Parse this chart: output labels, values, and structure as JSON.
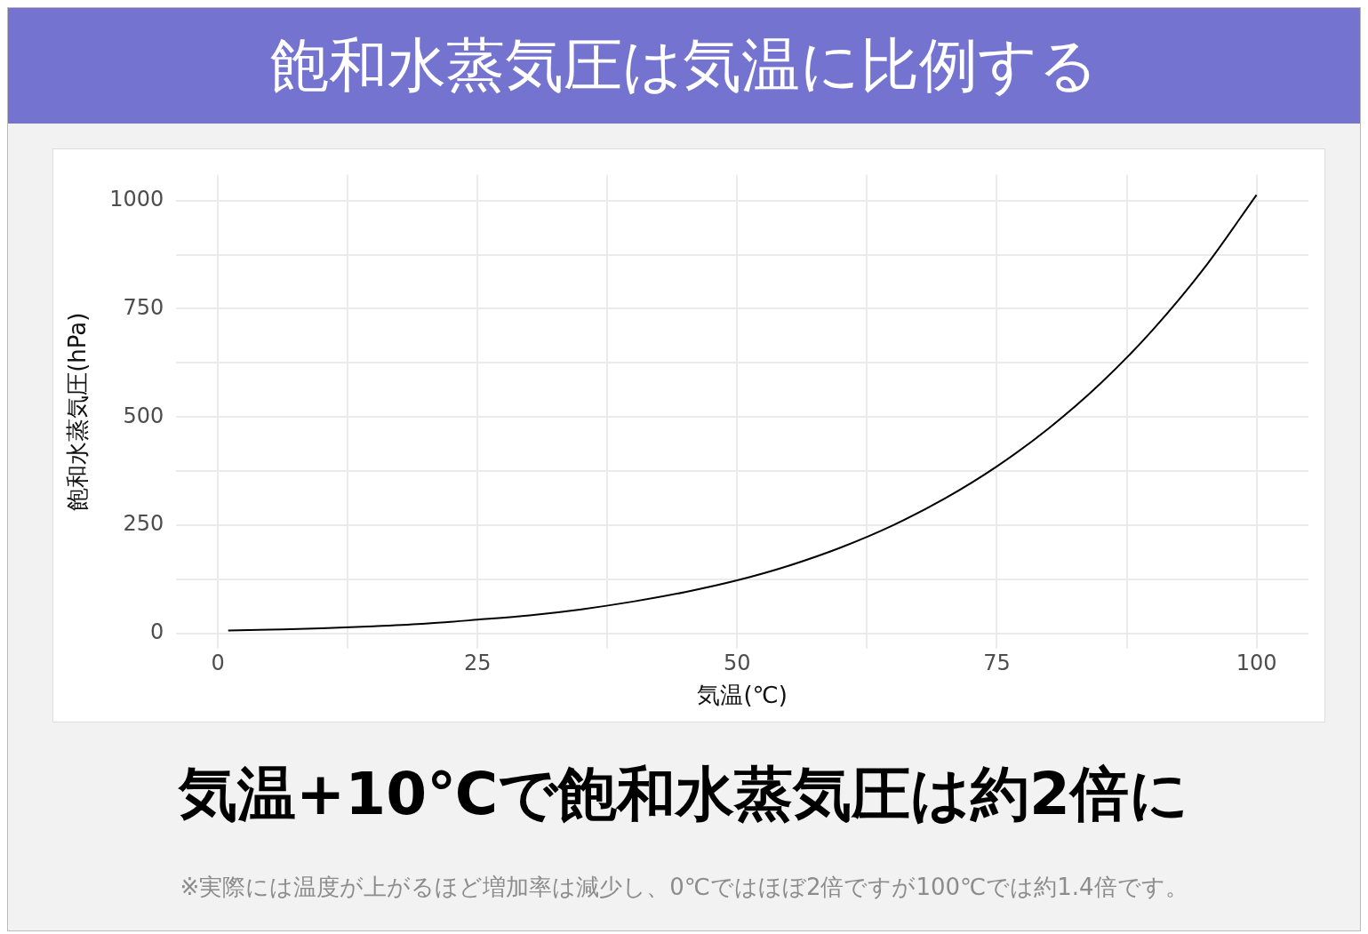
{
  "chart_data": {
    "type": "line",
    "title": "飽和水蒸気圧は気温に比例する",
    "subtitle": "気温+10℃で飽和水蒸気圧は約2倍に",
    "xlabel": "気温(℃)",
    "ylabel": "飽和水蒸気圧(hPa)",
    "x": [
      1,
      5,
      10,
      15,
      20,
      25,
      30,
      35,
      40,
      45,
      50,
      55,
      60,
      65,
      70,
      75,
      80,
      85,
      90,
      95,
      100
    ],
    "values": [
      7,
      9,
      12,
      17,
      23,
      32,
      42,
      56,
      74,
      96,
      123,
      157,
      199,
      250,
      312,
      386,
      474,
      578,
      701,
      845,
      1013
    ],
    "color": "#000000",
    "xlim": [
      -4,
      105
    ],
    "ylim": [
      -35,
      1060
    ],
    "xticks": [
      0,
      {
        "value": 12.5,
        "label": null
      },
      25,
      {
        "value": 37.5,
        "label": null
      },
      50,
      {
        "value": 62.5,
        "label": null
      },
      75,
      {
        "value": 87.5,
        "label": null
      },
      100
    ],
    "yticks": [
      0,
      {
        "value": 125,
        "label": null
      },
      250,
      {
        "value": 375,
        "label": null
      },
      500,
      {
        "value": 625,
        "label": null
      },
      750,
      {
        "value": 875,
        "label": null
      },
      1000
    ],
    "grid": true,
    "annotations": [
      "※実際には温度が上がるほど増加率は減少し、0℃ではほぼ2倍ですが100℃では約1.4倍です。"
    ]
  }
}
